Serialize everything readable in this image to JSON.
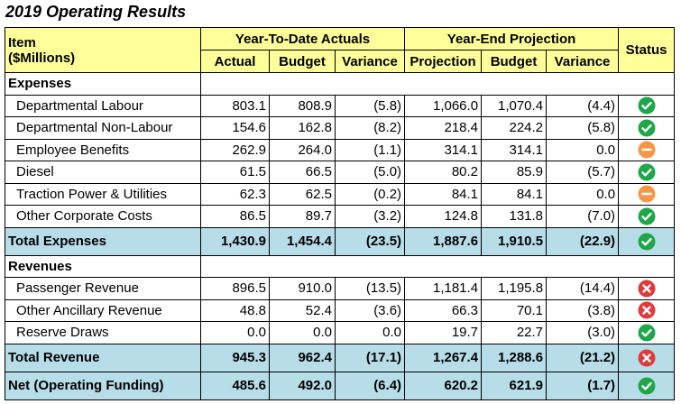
{
  "title": "2019 Operating Results",
  "header": {
    "item": [
      "Item",
      "($Millions)"
    ],
    "groups": [
      "Year-To-Date Actuals",
      "Year-End Projection"
    ],
    "columns": [
      "Actual",
      "Budget",
      "Variance",
      "Projection",
      "Budget",
      "Variance"
    ],
    "status": "Status"
  },
  "sections": [
    {
      "name": "Expenses",
      "rows": [
        {
          "label": "Departmental Labour",
          "values": [
            "803.1",
            "808.9",
            "(5.8)",
            "1,066.0",
            "1,070.4",
            "(4.4)"
          ]
        },
        {
          "label": "Departmental Non-Labour",
          "values": [
            "154.6",
            "162.8",
            "(8.2)",
            "218.4",
            "224.2",
            "(5.8)"
          ]
        },
        {
          "label": "Employee Benefits",
          "values": [
            "262.9",
            "264.0",
            "(1.1)",
            "314.1",
            "314.1",
            "0.0"
          ]
        },
        {
          "label": "Diesel",
          "values": [
            "61.5",
            "66.5",
            "(5.0)",
            "80.2",
            "85.9",
            "(5.7)"
          ]
        },
        {
          "label": "Traction Power & Utilities",
          "values": [
            "62.3",
            "62.5",
            "(0.2)",
            "84.1",
            "84.1",
            "0.0"
          ]
        },
        {
          "label": "Other Corporate Costs",
          "values": [
            "86.5",
            "89.7",
            "(3.2)",
            "124.8",
            "131.8",
            "(7.0)"
          ]
        }
      ],
      "total": {
        "label": "Total Expenses",
        "values": [
          "1,430.9",
          "1,454.4",
          "(23.5)",
          "1,887.6",
          "1,910.5",
          "(22.9)"
        ]
      }
    },
    {
      "name": "Revenues",
      "rows": [
        {
          "label": "Passenger Revenue",
          "values": [
            "896.5",
            "910.0",
            "(13.5)",
            "1,181.4",
            "1,195.8",
            "(14.4)"
          ]
        },
        {
          "label": "Other Ancillary Revenue",
          "values": [
            "48.8",
            "52.4",
            "(3.6)",
            "66.3",
            "70.1",
            "(3.8)"
          ]
        },
        {
          "label": "Reserve Draws",
          "values": [
            "0.0",
            "0.0",
            "0.0",
            "19.7",
            "22.7",
            "(3.0)"
          ]
        }
      ],
      "total": {
        "label": "Total Revenue",
        "values": [
          "945.3",
          "962.4",
          "(17.1)",
          "1,267.4",
          "1,288.6",
          "(21.2)"
        ]
      }
    }
  ],
  "net": {
    "label": "Net (Operating Funding)",
    "values": [
      "485.6",
      "492.0",
      "(6.4)",
      "620.2",
      "621.9",
      "(1.7)"
    ]
  }
}
